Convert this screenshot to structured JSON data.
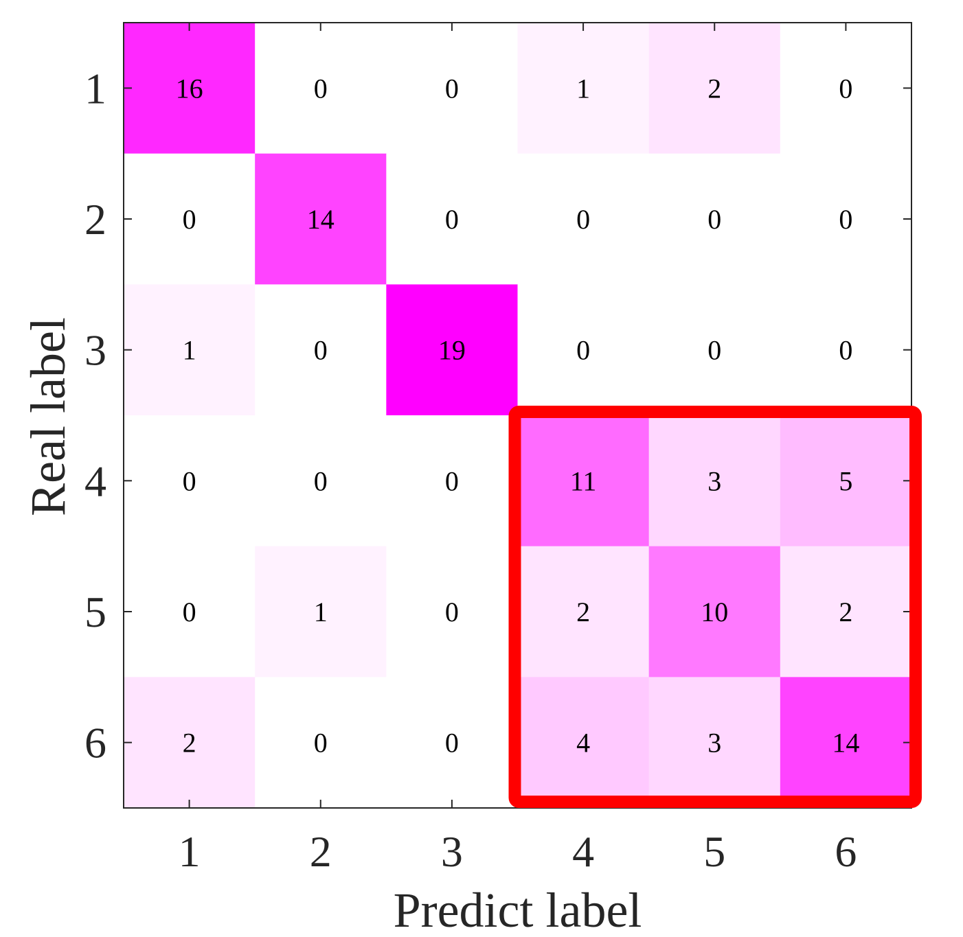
{
  "chart_data": {
    "type": "heatmap",
    "title": "",
    "xlabel": "Predict label",
    "ylabel": "Real label",
    "x_categories": [
      "1",
      "2",
      "3",
      "4",
      "5",
      "6"
    ],
    "y_categories": [
      "1",
      "2",
      "3",
      "4",
      "5",
      "6"
    ],
    "values": [
      [
        16,
        0,
        0,
        1,
        2,
        0
      ],
      [
        0,
        14,
        0,
        0,
        0,
        0
      ],
      [
        1,
        0,
        19,
        0,
        0,
        0
      ],
      [
        0,
        0,
        0,
        11,
        3,
        5
      ],
      [
        0,
        1,
        0,
        2,
        10,
        2
      ],
      [
        2,
        0,
        0,
        4,
        3,
        14
      ]
    ],
    "colormap": {
      "low": "#ffffff",
      "high": "#ff00ff"
    },
    "highlight": {
      "rows": [
        4,
        6
      ],
      "cols": [
        4,
        6
      ],
      "color": "#ff0000"
    }
  }
}
